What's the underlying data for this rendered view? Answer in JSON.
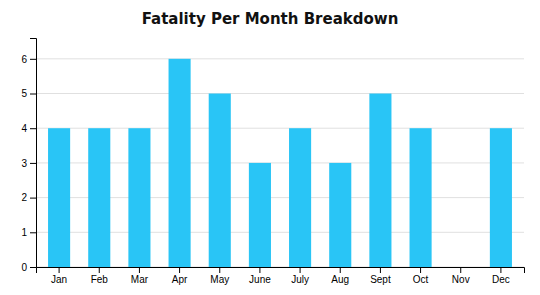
{
  "chart_data": {
    "type": "bar",
    "title": "Fatality Per Month Breakdown",
    "categories": [
      "Jan",
      "Feb",
      "Mar",
      "Apr",
      "May",
      "June",
      "July",
      "Aug",
      "Sept",
      "Oct",
      "Nov",
      "Dec"
    ],
    "values": [
      4,
      4,
      4,
      6,
      5,
      3,
      4,
      3,
      5,
      4,
      0,
      4
    ],
    "color": "#29C5F6",
    "ylim": [
      0,
      6.6
    ],
    "yticks": [
      0,
      1,
      2,
      3,
      4,
      5,
      6
    ],
    "grid": true
  }
}
